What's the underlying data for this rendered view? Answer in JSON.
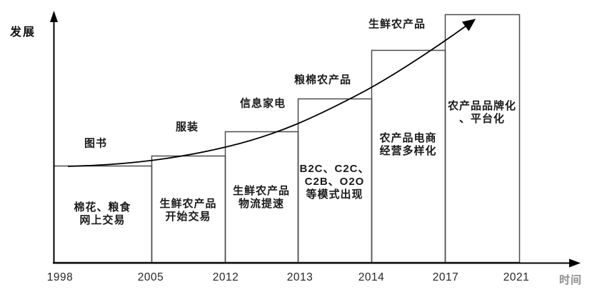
{
  "axes": {
    "y_label": "发展",
    "x_label": "时间"
  },
  "chart_data": {
    "type": "bar",
    "title": "",
    "xlabel": "时间",
    "ylabel": "发展",
    "x_ticks": [
      "1998",
      "2005",
      "2012",
      "2013",
      "2014",
      "2017",
      "2021"
    ],
    "legend": [],
    "grid": false,
    "trend_curve": {
      "shape": "exponential-rise",
      "arrow_end": true,
      "description": "smooth rising curve from top of first bar to top of last bar ending in an arrowhead"
    },
    "bars": [
      {
        "period_start": "1998",
        "period_end": "2005",
        "top_label": "图书",
        "inner_lines": [
          "棉花、粮食",
          "网上交易"
        ],
        "height_ratio": 0.391
      },
      {
        "period_start": "2005",
        "period_end": "2012",
        "top_label": "服装",
        "inner_lines": [
          "生鲜农产品",
          "开始交易"
        ],
        "height_ratio": 0.431
      },
      {
        "period_start": "2012",
        "period_end": "2013",
        "top_label": "信息家电",
        "inner_lines": [
          "生鲜农产品",
          "物流提速"
        ],
        "height_ratio": 0.529
      },
      {
        "period_start": "2013",
        "period_end": "2014",
        "top_label": "粮棉农产品",
        "inner_lines": [
          "B2C、C2C、",
          "C2B、O2O",
          "等模式出现"
        ],
        "height_ratio": 0.661
      },
      {
        "period_start": "2014",
        "period_end": "2017",
        "top_label": "生鲜农产品",
        "inner_lines": [
          "农产品电商",
          "经营多样化"
        ],
        "height_ratio": 0.856
      },
      {
        "period_start": "2017",
        "period_end": "2021",
        "top_label": "",
        "inner_lines": [
          "农产品品牌化",
          "、平台化"
        ],
        "height_ratio": 1.0
      }
    ]
  },
  "colors": {
    "bar_border": "#4a4a4a",
    "axis": "#000000",
    "curve": "#000000",
    "text": "#1a1a1a",
    "muted_label": "#8f8f8f"
  }
}
